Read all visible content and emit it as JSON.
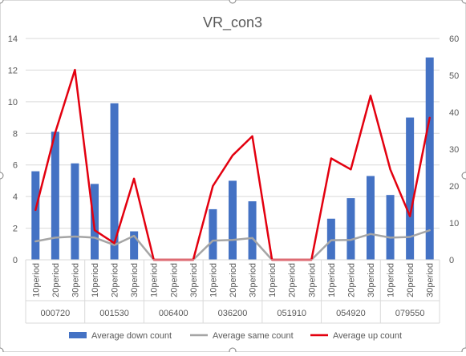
{
  "chart_data": {
    "type": "bar",
    "title": "VR_con3",
    "groups": [
      "000720",
      "001530",
      "006400",
      "036200",
      "051910",
      "054920",
      "079550"
    ],
    "subcategories": [
      "10period",
      "20period",
      "30period"
    ],
    "categories": [
      "10period",
      "20period",
      "30period",
      "10period",
      "20period",
      "30period",
      "10period",
      "20period",
      "30period",
      "10period",
      "20period",
      "30period",
      "10period",
      "20period",
      "30period",
      "10period",
      "20period",
      "30period",
      "10period",
      "20period",
      "30period"
    ],
    "y_left": {
      "ylim": [
        0,
        14
      ],
      "ticks": [
        "0",
        "2",
        "4",
        "6",
        "8",
        "10",
        "12",
        "14"
      ]
    },
    "y_right": {
      "ylim": [
        0,
        60
      ],
      "ticks": [
        "0",
        "10",
        "20",
        "30",
        "40",
        "50",
        "60"
      ]
    },
    "series": [
      {
        "name": "Average down count",
        "type": "bar",
        "axis": "left",
        "color": "#4472c4",
        "values": [
          5.6,
          8.1,
          6.1,
          4.8,
          9.9,
          1.8,
          0,
          0,
          0,
          3.2,
          5.0,
          3.7,
          0,
          0,
          0,
          2.6,
          3.9,
          5.3,
          4.1,
          9.0,
          12.8
        ]
      },
      {
        "name": "Average same count",
        "type": "line",
        "axis": "right",
        "color": "#a5a5a5",
        "values": [
          5,
          6,
          6.3,
          6,
          4,
          6.5,
          0,
          0,
          0,
          5.2,
          5.4,
          5.9,
          0,
          0,
          0,
          5.3,
          5.4,
          7,
          6,
          6.2,
          8
        ]
      },
      {
        "name": "Average up count",
        "type": "line",
        "axis": "right",
        "color": "#e3000f",
        "values": [
          13.5,
          34.5,
          51.5,
          8,
          4.5,
          22,
          0,
          0,
          0,
          20,
          28.3,
          33.5,
          0,
          0,
          0,
          27.5,
          24.5,
          44.5,
          24.5,
          11.8,
          38.5
        ]
      }
    ],
    "grid": true,
    "legend_position": "bottom"
  }
}
